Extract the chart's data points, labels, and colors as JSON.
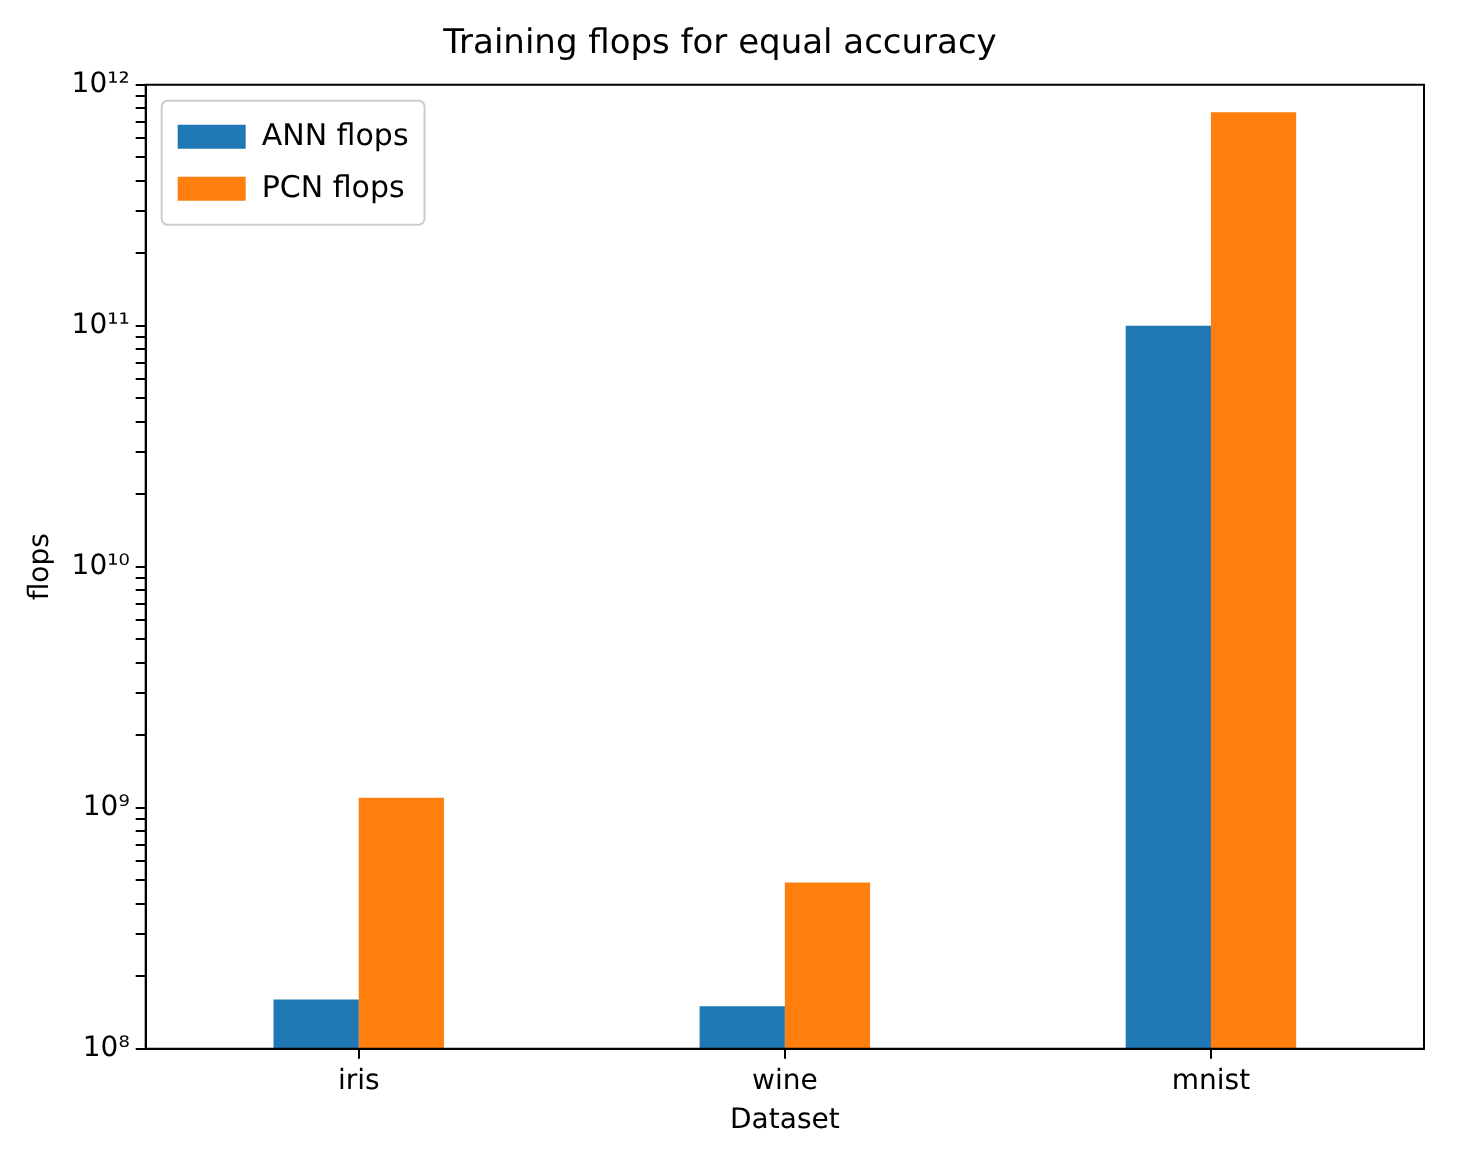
{
  "chart_data": {
    "type": "bar",
    "title": "Training flops for equal accuracy",
    "xlabel": "Dataset",
    "ylabel": "flops",
    "categories": [
      "iris",
      "wine",
      "mnist"
    ],
    "series": [
      {
        "name": "ANN flops",
        "color": "#1f77b4",
        "values": [
          160000000.0,
          150000000.0,
          100000000000.0
        ]
      },
      {
        "name": "PCN flops",
        "color": "#ff7f0e",
        "values": [
          1100000000.0,
          490000000.0,
          770000000000.0
        ]
      }
    ],
    "log": true,
    "ylim": [
      100000000.0,
      1000000000000.0
    ],
    "yticks": [
      {
        "value": 100000000.0,
        "label": "10⁸"
      },
      {
        "value": 200000000.0,
        "label": null
      },
      {
        "value": 300000000.0,
        "label": null
      },
      {
        "value": 400000000.0,
        "label": null
      },
      {
        "value": 500000000.0,
        "label": null
      },
      {
        "value": 600000000.0,
        "label": null
      },
      {
        "value": 700000000.0,
        "label": null
      },
      {
        "value": 800000000.0,
        "label": null
      },
      {
        "value": 900000000.0,
        "label": null
      },
      {
        "value": 1000000000.0,
        "label": "10⁹"
      },
      {
        "value": 2000000000.0,
        "label": null
      },
      {
        "value": 3000000000.0,
        "label": null
      },
      {
        "value": 4000000000.0,
        "label": null
      },
      {
        "value": 5000000000.0,
        "label": null
      },
      {
        "value": 6000000000.0,
        "label": null
      },
      {
        "value": 7000000000.0,
        "label": null
      },
      {
        "value": 8000000000.0,
        "label": null
      },
      {
        "value": 9000000000.0,
        "label": null
      },
      {
        "value": 10000000000.0,
        "label": "10¹⁰"
      },
      {
        "value": 20000000000.0,
        "label": null
      },
      {
        "value": 30000000000.0,
        "label": null
      },
      {
        "value": 40000000000.0,
        "label": null
      },
      {
        "value": 50000000000.0,
        "label": null
      },
      {
        "value": 60000000000.0,
        "label": null
      },
      {
        "value": 70000000000.0,
        "label": null
      },
      {
        "value": 80000000000.0,
        "label": null
      },
      {
        "value": 90000000000.0,
        "label": null
      },
      {
        "value": 100000000000.0,
        "label": "10¹¹"
      },
      {
        "value": 200000000000.0,
        "label": null
      },
      {
        "value": 300000000000.0,
        "label": null
      },
      {
        "value": 400000000000.0,
        "label": null
      },
      {
        "value": 500000000000.0,
        "label": null
      },
      {
        "value": 600000000000.0,
        "label": null
      },
      {
        "value": 700000000000.0,
        "label": null
      },
      {
        "value": 800000000000.0,
        "label": null
      },
      {
        "value": 900000000000.0,
        "label": null
      },
      {
        "value": 1000000000000.0,
        "label": "10¹²"
      }
    ],
    "grid": false,
    "legend": "top left"
  }
}
